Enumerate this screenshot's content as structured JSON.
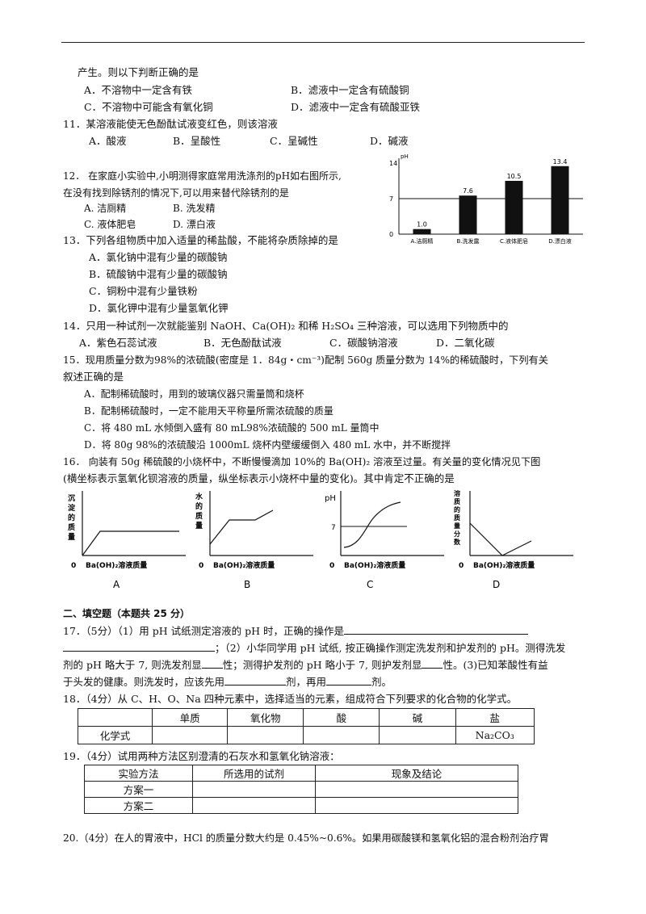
{
  "q10": {
    "tail": "产生。则以下判断正确的是",
    "a": "A．不溶物中一定含有铁",
    "b": "B．滤液中一定含有硫酸铜",
    "c": "C．不溶物中可能含有氧化铜",
    "d": "D．滤液中一定含有硫酸亚铁"
  },
  "q11": {
    "stem": "11．某溶液能使无色酚酞试液变红色，则该溶液",
    "a": "A．酸液",
    "b": "B．呈酸性",
    "c": "C．呈碱性",
    "d": "D．碱液"
  },
  "q12": {
    "stem1": "12． 在家庭小实验中,小明测得家庭常用洗涤剂的pH如右图所示,",
    "stem2": "在没有找到除锈剂的情况下,可以用来替代除锈剂的是",
    "a": "A. 洁厕精",
    "b": "B. 洗发精",
    "c": "C. 液体肥皂",
    "d": "D. 漂白液"
  },
  "chart_data": {
    "type": "bar",
    "ylabel": "pH",
    "yticks": [
      "14",
      "7",
      "0"
    ],
    "ylim": [
      0,
      14
    ],
    "reference_line": 7,
    "categories": [
      "A.洁厕精",
      "B.洗发露",
      "C.液体肥皂",
      "D.漂白液"
    ],
    "values": [
      1.0,
      7.6,
      10.5,
      13.4
    ],
    "value_labels": [
      "1.0",
      "7.6",
      "10.5",
      "13.4"
    ]
  },
  "q13": {
    "stem": "13．下列各组物质中加入适量的稀盐酸，不能将杂质除掉的是",
    "a": "A．氯化钠中混有少量的碳酸钠",
    "b": "B．硫酸钠中混有少量的碳酸钠",
    "c": "C．铜粉中混有少量铁粉",
    "d": "D．氯化钾中混有少量氢氧化钾"
  },
  "q14": {
    "stem": "14．只用一种试剂一次就能鉴别 NaOH、Ca(OH)₂ 和稀 H₂SO₄ 三种溶液，可以选用下列物质中的",
    "a": "A．紫色石蕊试液",
    "b": "B．无色酚酞试液",
    "c": "C．碳酸钠溶液",
    "d": "D．二氧化碳"
  },
  "q15": {
    "stem1": "15．现用质量分数为98%的浓硫酸(密度是 1．84g・cm⁻³)配制 560g 质量分数为 14%的稀硫酸时，下列有关",
    "stem2": "叙述正确的是",
    "a": "A．配制稀硫酸时，用到的玻璃仪器只需量筒和烧杯",
    "b": "B．配制稀硫酸时，一定不能用天平称量所需浓硫酸的质量",
    "c": "C．将 480 mL 水倾倒入盛有 80 mL98%浓硫酸的 500 mL 量筒中",
    "d": "D．将 80g 98%的浓硫酸沿 1000mL 烧杯内壁缓缓倒入 480 mL 水中，并不断搅拌"
  },
  "q16": {
    "stem1": "16． 向装有 50g 稀硫酸的小烧杯中，不断慢慢滴加 10%的 Ba(OH)₂ 溶液至过量。有关量的变化情况见下图",
    "stem2": "(横坐标表示氢氧化钡溶液的质量，纵坐标表示小烧杯中量的变化)。其中肯定不正确的是",
    "graphs": [
      {
        "letter": "A",
        "ylabel": [
          "沉",
          "淀",
          "的",
          "质",
          "量"
        ],
        "xlabel": "Ba(OH)₂溶液质量",
        "origin": "0"
      },
      {
        "letter": "B",
        "ylabel": [
          "水",
          "的",
          "质",
          "量"
        ],
        "xlabel": "Ba(OH)₂溶液质量",
        "origin": "0"
      },
      {
        "letter": "C",
        "ylabel": [
          "pH"
        ],
        "xlabel": "Ba(OH)₂溶液质量",
        "origin": "0",
        "ref": "7"
      },
      {
        "letter": "D",
        "ylabel": [
          "溶",
          "质",
          "的",
          "质",
          "量",
          "分",
          "数"
        ],
        "xlabel": "Ba(OH)₂溶液质量",
        "origin": "0"
      }
    ]
  },
  "section2": "二、填空题（本题共 25 分）",
  "q17": {
    "l1": "17．（5分）（1）用 pH 试纸测定溶液的 pH 时，正确的操作是",
    "l2a": "；（2）小华同学用 pH 试纸, 按正确操作测定洗发剂和护发剂的 pH。测得洗发",
    "l3a": "剂的 pH 略大于 7, 则洗发剂显",
    "l3b": "性；测得护发剂的 pH 略小于 7, 则护发剂显",
    "l3c": "性。(3)已知苯酸性有益",
    "l4a": "于头发的健康。则洗发时，应该先用",
    "l4b": "剂，再用",
    "l4c": "剂。"
  },
  "q18": {
    "stem": "18．（4分）从 C、H、O、Na 四种元素中，选择适当的元素，组成符合下列要求的化合物的化学式。",
    "headers": [
      "",
      "单质",
      "氧化物",
      "酸",
      "碱",
      "盐"
    ],
    "row": [
      "化学式",
      "",
      "",
      "",
      "",
      "Na₂CO₃"
    ]
  },
  "q19": {
    "stem": "19．（4分）试用两种方法区别澄清的石灰水和氢氧化钠溶液：",
    "headers": [
      "实验方法",
      "所选用的试剂",
      "现象及结论"
    ],
    "rows": [
      [
        "方案一",
        "",
        ""
      ],
      [
        "方案二",
        "",
        ""
      ]
    ]
  },
  "q20": {
    "stem": "20.（4分）在人的胃液中，HCl 的质量分数大约是 0.45%~0.6%。如果用碳酸镁和氢氧化铝的混合粉剂治疗胃"
  }
}
